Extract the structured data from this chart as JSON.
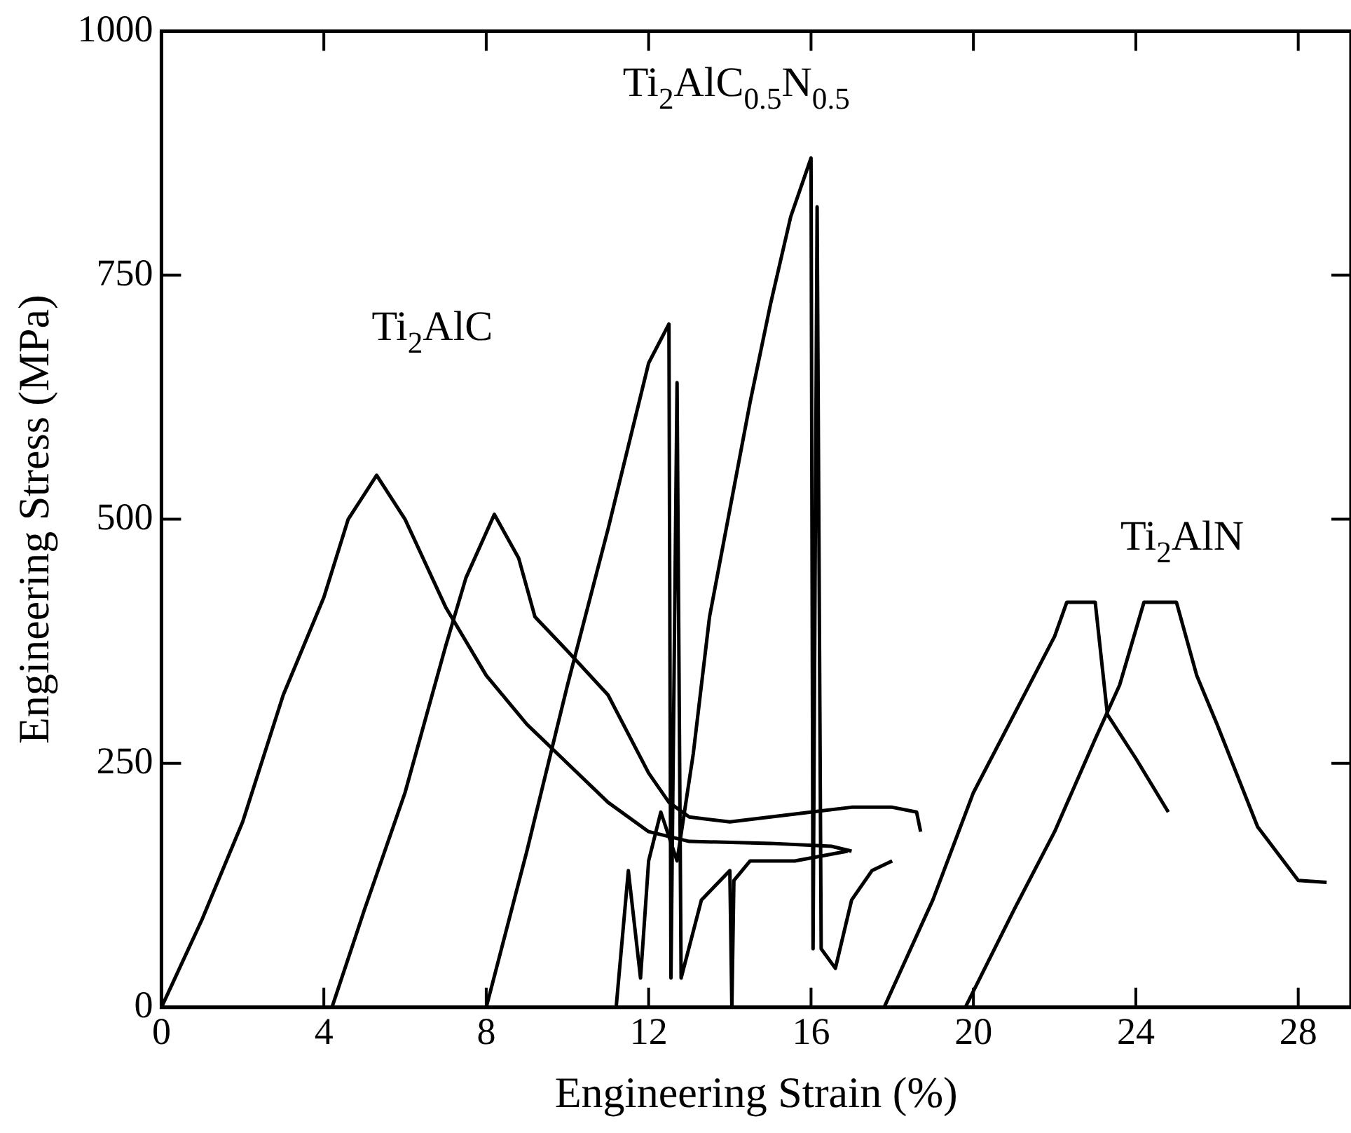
{
  "chart_data": {
    "type": "line",
    "xlabel": "Engineering Strain (%)",
    "ylabel": "Engineering Stress (MPa)",
    "xlim": [
      0,
      29.3
    ],
    "xticks": [
      0,
      4,
      8,
      12,
      16,
      20,
      24,
      28
    ],
    "ylim": [
      0,
      1000
    ],
    "yticks": [
      0,
      250,
      500,
      750,
      1000
    ],
    "grid": false,
    "legend": false,
    "marker": "none",
    "line_style": "solid",
    "series": [
      {
        "color": "#000000",
        "x": [
          0,
          1,
          2,
          3,
          4,
          4.6,
          5.3,
          6,
          7,
          8,
          9,
          10,
          11,
          12,
          13,
          15,
          16.5,
          17
        ],
        "values": [
          0,
          90,
          190,
          320,
          420,
          500,
          545,
          500,
          410,
          340,
          290,
          250,
          210,
          180,
          170,
          168,
          165,
          160
        ]
      },
      {
        "color": "#000000",
        "x": [
          4.2,
          5,
          6,
          7,
          7.5,
          8.2,
          8.8,
          9.2,
          10,
          11,
          12,
          12.5,
          13,
          14,
          15,
          16,
          17,
          18,
          18.6,
          18.7
        ],
        "values": [
          0,
          100,
          220,
          370,
          440,
          505,
          460,
          400,
          365,
          320,
          240,
          210,
          195,
          190,
          195,
          200,
          205,
          205,
          200,
          180
        ]
      },
      {
        "color": "#000000",
        "x": [
          8,
          9,
          10,
          11,
          12,
          12.5,
          12.55,
          12.7,
          12.8,
          13.3,
          14,
          14.05,
          14.1,
          14.5,
          15.6,
          16.9
        ],
        "values": [
          0,
          160,
          330,
          490,
          660,
          700,
          30,
          640,
          30,
          110,
          140,
          0,
          130,
          150,
          150,
          160
        ]
      },
      {
        "color": "#000000",
        "x": [
          11.2,
          11.5,
          11.8,
          12,
          12.3,
          12.7,
          13.1,
          13.5,
          14,
          14.5,
          15,
          15.5,
          16,
          16.05,
          16.15,
          16.25,
          16.6,
          17,
          17.5,
          18
        ],
        "values": [
          0,
          140,
          30,
          150,
          200,
          150,
          260,
          400,
          510,
          620,
          720,
          810,
          870,
          60,
          820,
          60,
          40,
          110,
          140,
          150
        ]
      },
      {
        "color": "#000000",
        "x": [
          17.8,
          19,
          20,
          21,
          22,
          22.3,
          23,
          23.3,
          24,
          24.8
        ],
        "values": [
          0,
          110,
          220,
          300,
          380,
          415,
          415,
          300,
          255,
          200
        ]
      },
      {
        "color": "#000000",
        "x": [
          19.8,
          21,
          22,
          23,
          23.6,
          24.2,
          25,
          25.5,
          26,
          27,
          28,
          28.7
        ],
        "values": [
          0,
          100,
          180,
          275,
          330,
          415,
          415,
          340,
          290,
          185,
          130,
          128
        ]
      }
    ],
    "annotations": [
      "Ti$_{2}$AlC",
      "Ti$_{2}$AlC$_{0.5}$N$_{0.5}$",
      "Ti$_{2}$AlN"
    ]
  }
}
